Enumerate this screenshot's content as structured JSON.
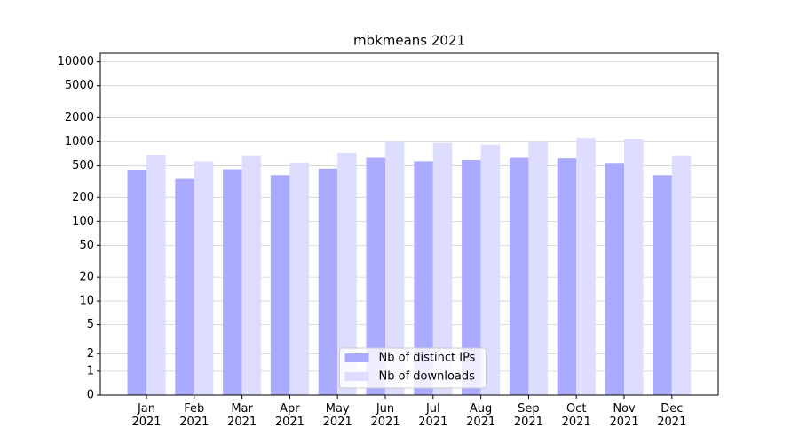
{
  "chart_data": {
    "type": "bar",
    "title": "mbkmeans 2021",
    "categories": [
      "Jan 2021",
      "Feb 2021",
      "Mar 2021",
      "Apr 2021",
      "May 2021",
      "Jun 2021",
      "Jul 2021",
      "Aug 2021",
      "Sep 2021",
      "Oct 2021",
      "Nov 2021",
      "Dec 2021"
    ],
    "series": [
      {
        "name": "Nb of distinct IPs",
        "color": "#aaaaff",
        "values": [
          440,
          340,
          450,
          380,
          460,
          630,
          570,
          590,
          630,
          620,
          530,
          380
        ]
      },
      {
        "name": "Nb of downloads",
        "color": "#ddddff",
        "values": [
          680,
          570,
          660,
          540,
          730,
          1000,
          970,
          920,
          1000,
          1120,
          1080,
          660
        ]
      }
    ],
    "yscale": "symlog",
    "ylim": [
      0,
      12800
    ],
    "yticks": [
      0,
      1,
      2,
      5,
      10,
      20,
      50,
      100,
      200,
      500,
      1000,
      2000,
      5000,
      10000
    ],
    "grid": true,
    "legend": "lower center"
  }
}
